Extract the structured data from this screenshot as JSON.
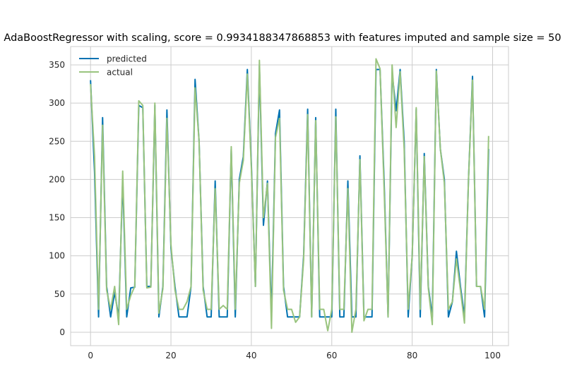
{
  "chart_data": {
    "type": "line",
    "title": "AdaBoostRegressor  with scaling, score = 0.9934188347868853 with features imputed and sample size = 50",
    "xlabel": "",
    "ylabel": "",
    "xlim": [
      -4.95,
      103.95
    ],
    "ylim": [
      -17.6,
      374.0
    ],
    "x_ticks": [
      0,
      20,
      40,
      60,
      80,
      100
    ],
    "y_ticks": [
      0,
      50,
      100,
      150,
      200,
      250,
      300,
      350
    ],
    "grid": true,
    "legend_position": "top-left",
    "series": [
      {
        "name": "predicted",
        "color": "#0072b2",
        "values": [
          330,
          210,
          20,
          281,
          60,
          20,
          52,
          20,
          200,
          20,
          58,
          59,
          297,
          294,
          60,
          60,
          297,
          20,
          60,
          291,
          110,
          60,
          20,
          20,
          20,
          60,
          331,
          250,
          60,
          20,
          20,
          198,
          20,
          20,
          20,
          240,
          20,
          200,
          230,
          344,
          220,
          60,
          349,
          140,
          198,
          20,
          260,
          291,
          60,
          20,
          20,
          20,
          20,
          100,
          292,
          20,
          281,
          20,
          20,
          20,
          20,
          292,
          20,
          20,
          198,
          20,
          20,
          231,
          20,
          20,
          20,
          344,
          344,
          200,
          20,
          340,
          290,
          344,
          250,
          20,
          100,
          292,
          20,
          234,
          60,
          20,
          344,
          240,
          200,
          20,
          40,
          106,
          60,
          20,
          200,
          335,
          60,
          60,
          20,
          240
        ]
      },
      {
        "name": "actual",
        "color": "#99c47e",
        "values": [
          325,
          230,
          30,
          271,
          55,
          30,
          60,
          10,
          211,
          30,
          48,
          60,
          303,
          297,
          58,
          59,
          300,
          25,
          57,
          280,
          115,
          55,
          30,
          30,
          40,
          60,
          320,
          250,
          55,
          30,
          30,
          188,
          30,
          35,
          30,
          243,
          30,
          195,
          225,
          338,
          215,
          60,
          356,
          150,
          195,
          5,
          255,
          280,
          55,
          30,
          30,
          13,
          20,
          95,
          285,
          20,
          277,
          30,
          30,
          2,
          30,
          282,
          30,
          30,
          188,
          0,
          30,
          226,
          15,
          30,
          30,
          358,
          345,
          190,
          20,
          350,
          268,
          341,
          240,
          30,
          100,
          294,
          30,
          230,
          58,
          10,
          342,
          240,
          195,
          30,
          40,
          96,
          55,
          12,
          200,
          330,
          60,
          60,
          30,
          257
        ]
      }
    ]
  }
}
